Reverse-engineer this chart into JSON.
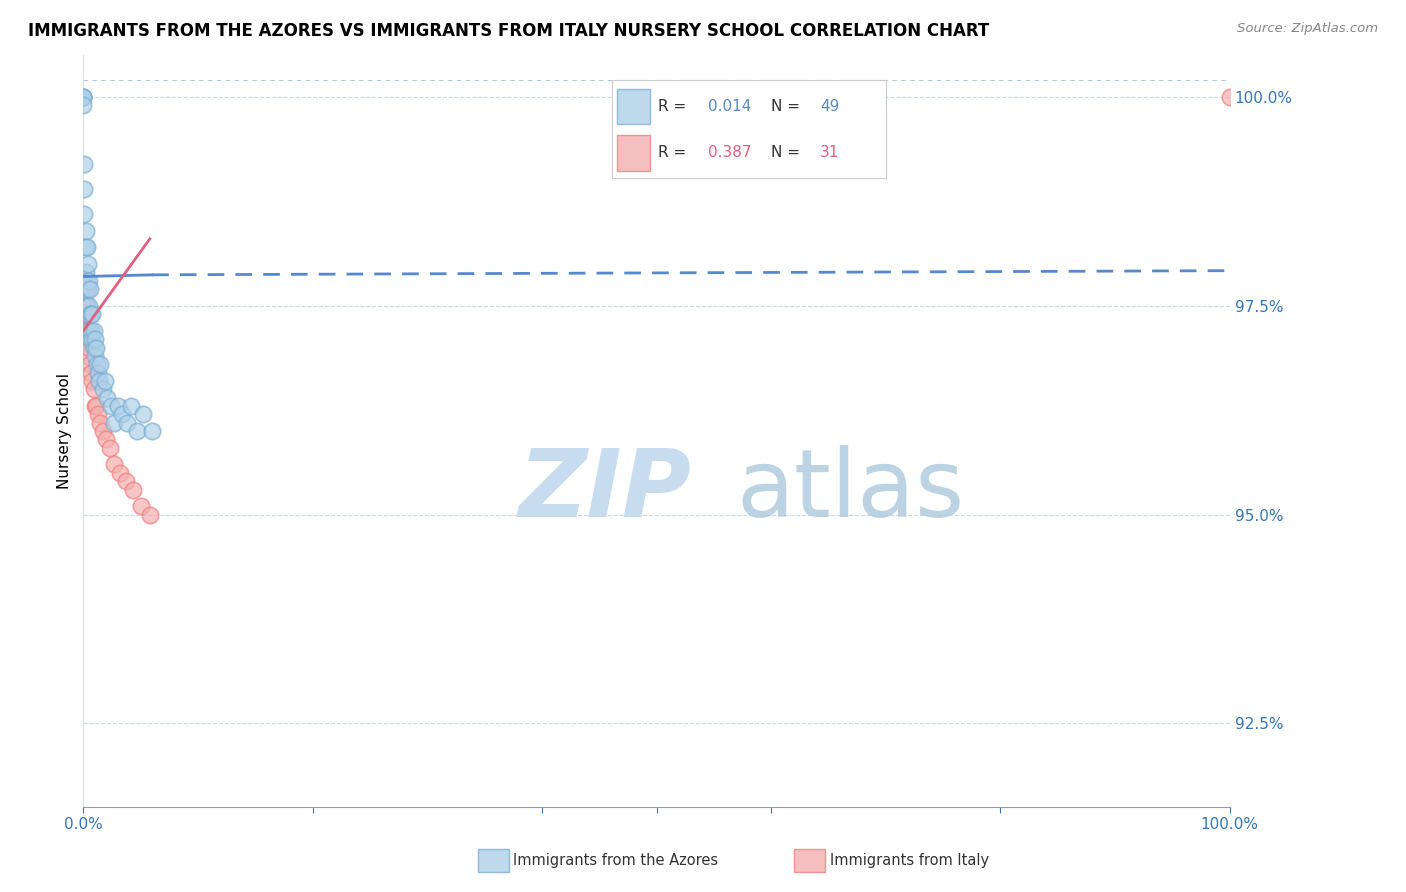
{
  "title": "IMMIGRANTS FROM THE AZORES VS IMMIGRANTS FROM ITALY NURSERY SCHOOL CORRELATION CHART",
  "source": "Source: ZipAtlas.com",
  "ylabel": "Nursery School",
  "ytick_values": [
    1.0,
    0.975,
    0.95,
    0.925
  ],
  "xlim": [
    0.0,
    1.0
  ],
  "ylim": [
    0.915,
    1.005
  ],
  "blue_color": "#7BAFD4",
  "blue_fill": "#AED0E8",
  "pink_color": "#F08080",
  "pink_fill": "#F4AFAF",
  "blue_line_color": "#5588CC",
  "pink_line_color": "#E06080",
  "watermark_zip_color": "#C8DCF0",
  "watermark_atlas_color": "#B0CCDF",
  "legend_R1": "0.014",
  "legend_N1": "49",
  "legend_R2": "0.387",
  "legend_N2": "31",
  "azores_x": [
    0.0,
    0.0,
    0.0,
    0.0,
    0.0,
    0.001,
    0.001,
    0.001,
    0.002,
    0.002,
    0.002,
    0.002,
    0.003,
    0.003,
    0.003,
    0.004,
    0.004,
    0.004,
    0.005,
    0.005,
    0.005,
    0.006,
    0.006,
    0.006,
    0.007,
    0.007,
    0.008,
    0.008,
    0.009,
    0.009,
    0.01,
    0.01,
    0.011,
    0.012,
    0.013,
    0.014,
    0.015,
    0.017,
    0.019,
    0.021,
    0.024,
    0.027,
    0.03,
    0.034,
    0.038,
    0.042,
    0.047,
    0.052,
    0.06
  ],
  "azores_y": [
    1.0,
    1.0,
    1.0,
    1.0,
    0.999,
    0.992,
    0.989,
    0.986,
    0.984,
    0.982,
    0.979,
    0.977,
    0.982,
    0.978,
    0.975,
    0.98,
    0.977,
    0.974,
    0.978,
    0.975,
    0.972,
    0.977,
    0.974,
    0.971,
    0.974,
    0.972,
    0.974,
    0.971,
    0.972,
    0.97,
    0.971,
    0.969,
    0.97,
    0.968,
    0.967,
    0.966,
    0.968,
    0.965,
    0.966,
    0.964,
    0.963,
    0.961,
    0.963,
    0.962,
    0.961,
    0.963,
    0.96,
    0.962,
    0.96
  ],
  "italy_x": [
    0.0,
    0.0,
    0.0,
    0.001,
    0.001,
    0.001,
    0.002,
    0.002,
    0.003,
    0.003,
    0.004,
    0.004,
    0.005,
    0.006,
    0.007,
    0.008,
    0.009,
    0.01,
    0.011,
    0.013,
    0.015,
    0.017,
    0.02,
    0.023,
    0.027,
    0.032,
    0.037,
    0.043,
    0.05,
    0.058,
    1.0
  ],
  "italy_y": [
    0.978,
    0.975,
    0.972,
    0.976,
    0.974,
    0.971,
    0.975,
    0.972,
    0.974,
    0.971,
    0.972,
    0.969,
    0.97,
    0.968,
    0.967,
    0.966,
    0.965,
    0.963,
    0.963,
    0.962,
    0.961,
    0.96,
    0.959,
    0.958,
    0.956,
    0.955,
    0.954,
    0.953,
    0.951,
    0.95,
    1.0
  ],
  "blue_trend_x0": 0.0,
  "blue_trend_x_solid_end": 0.06,
  "blue_trend_x_dash_end": 1.0,
  "blue_trend_y0": 0.9785,
  "blue_trend_y_solid_end": 0.9787,
  "blue_trend_y_dash_end": 0.9792,
  "pink_trend_x0": 0.0,
  "pink_trend_x1": 0.058,
  "pink_trend_y0": 0.972,
  "pink_trend_y1": 0.983,
  "grid_color": "#C8D8E8",
  "top_dotted_color": "#AACCDD"
}
